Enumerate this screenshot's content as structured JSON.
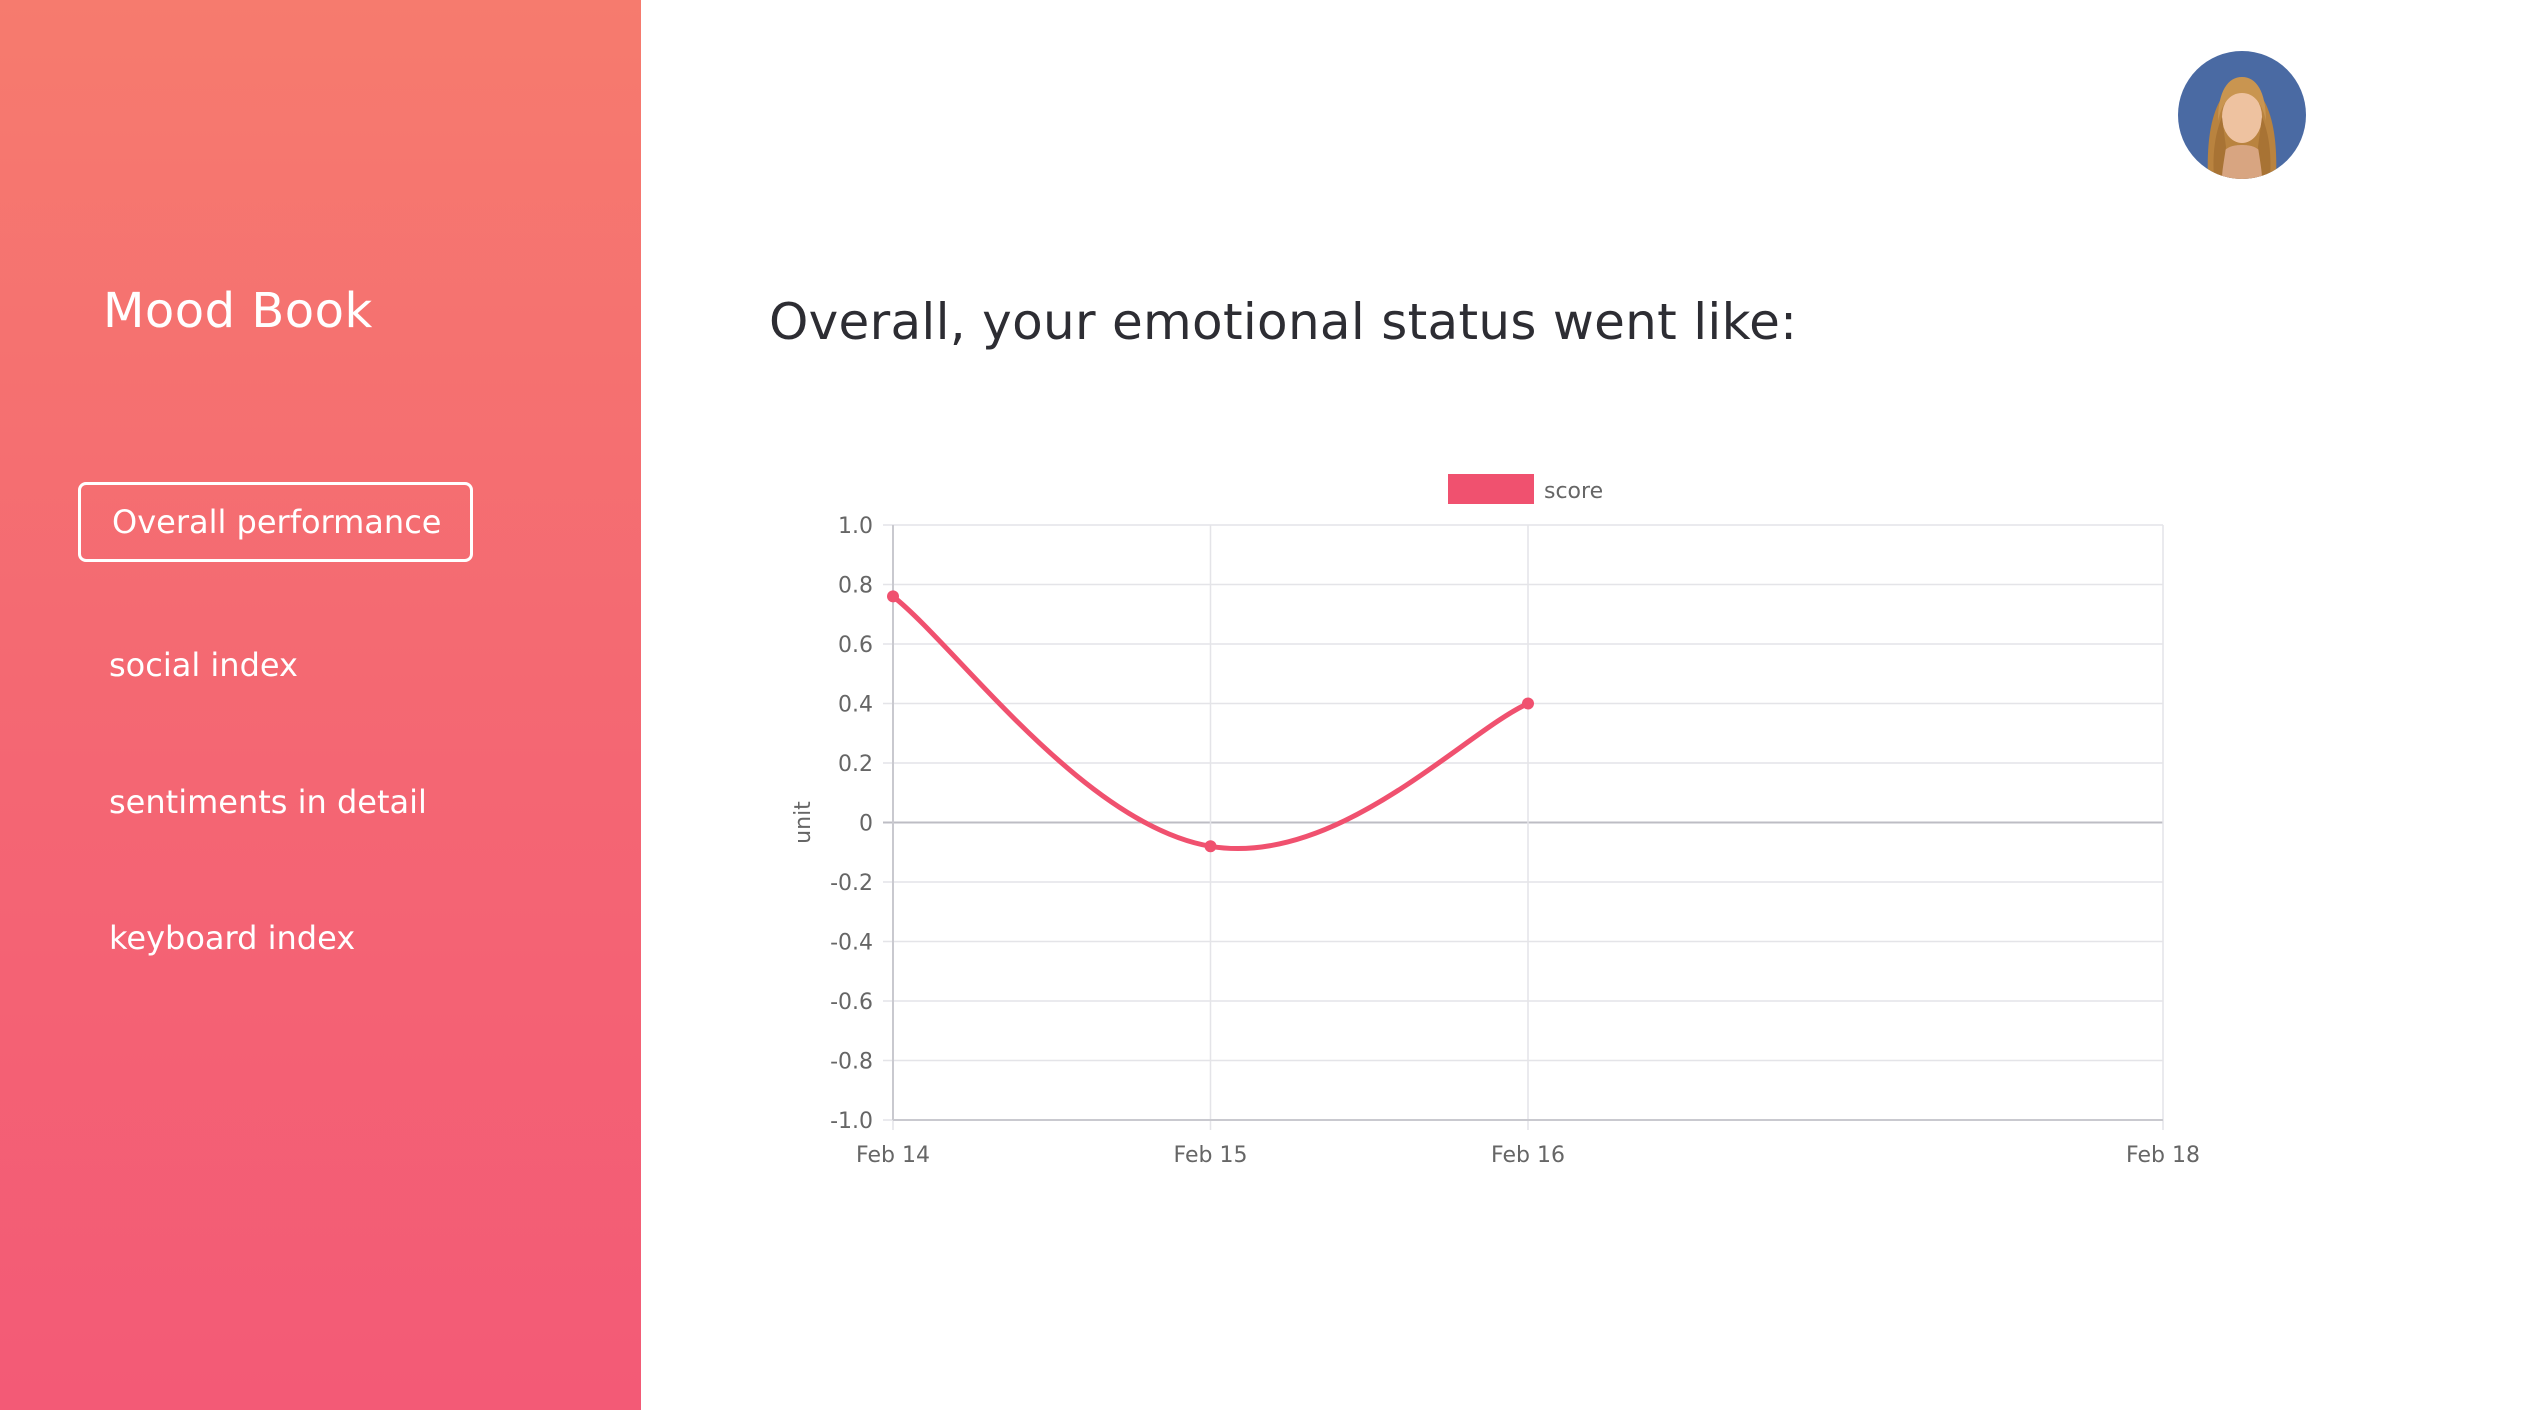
{
  "sidebar": {
    "brand": "Mood Book",
    "items": [
      {
        "label": "Overall performance",
        "active": true
      },
      {
        "label": "social index",
        "active": false
      },
      {
        "label": "sentiments in detail",
        "active": false
      },
      {
        "label": "keyboard index",
        "active": false
      }
    ],
    "gradient_top": "#f67b6e",
    "gradient_bottom": "#f35a76"
  },
  "header": {
    "avatar": "user-avatar-photo"
  },
  "main": {
    "headline": "Overall, your emotional status went like:"
  },
  "chart_data": {
    "type": "line",
    "legend": "top-center",
    "ylabel": "unit",
    "xlabel": "",
    "ylim": [
      -1.0,
      1.0
    ],
    "y_ticks": [
      "1.0",
      "0.8",
      "0.6",
      "0.4",
      "0.2",
      "0",
      "-0.2",
      "-0.4",
      "-0.6",
      "-0.8",
      "-1.0"
    ],
    "x_ticks": [
      "Feb 14",
      "Feb 15",
      "Feb 16",
      "Feb 18"
    ],
    "grid": true,
    "series": [
      {
        "name": "score",
        "color": "#f0516f",
        "x": [
          "Feb 14",
          "Feb 15",
          "Feb 16"
        ],
        "values": [
          0.76,
          -0.08,
          0.4
        ]
      }
    ]
  }
}
